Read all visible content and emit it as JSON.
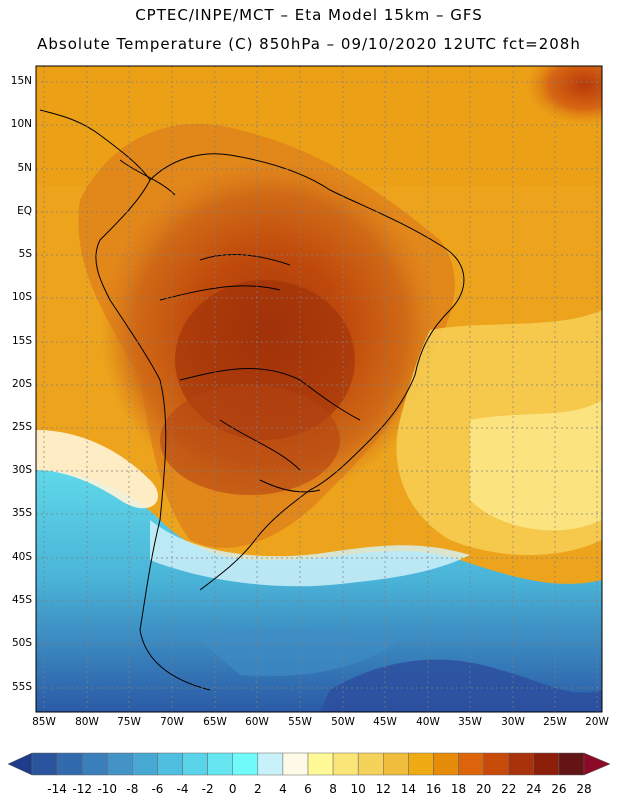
{
  "header": {
    "line1": "CPTEC/INPE/MCT –  Eta Model 15km – GFS",
    "line2": "Absolute Temperature (C) 850hPa – 09/10/2020 12UTC fct=208h"
  },
  "map": {
    "lat_labels": [
      "15N",
      "10N",
      "5N",
      "EQ",
      "5S",
      "10S",
      "15S",
      "20S",
      "25S",
      "30S",
      "35S",
      "40S",
      "45S",
      "50S",
      "55S"
    ],
    "lon_labels": [
      "85W",
      "80W",
      "75W",
      "70W",
      "65W",
      "60W",
      "55W",
      "50W",
      "45W",
      "40W",
      "35W",
      "30W",
      "25W",
      "20W"
    ]
  },
  "colorbar": {
    "labels": [
      "-14",
      "-12",
      "-10",
      "-8",
      "-6",
      "-4",
      "-2",
      "0",
      "2",
      "4",
      "6",
      "8",
      "10",
      "12",
      "14",
      "16",
      "18",
      "20",
      "22",
      "24",
      "26",
      "28"
    ],
    "colors": [
      "#1e3c8c",
      "#2a559e",
      "#326aae",
      "#3a7fbc",
      "#4393c7",
      "#48a8d4",
      "#50bedf",
      "#5ad4e8",
      "#66e6f0",
      "#70fafa",
      "#c8f2fa",
      "#fffae6",
      "#fffa96",
      "#fae678",
      "#f5d25a",
      "#f0be3c",
      "#f0aa14",
      "#e68c0a",
      "#dc640a",
      "#c84a0a",
      "#aa320a",
      "#8c1e0a",
      "#641414",
      "#8c0a28"
    ]
  }
}
